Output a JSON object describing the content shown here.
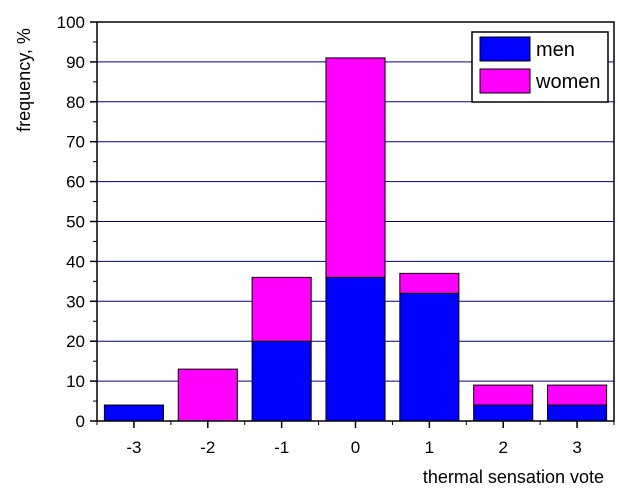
{
  "chart_data": {
    "type": "bar",
    "stacked": true,
    "categories": [
      "-3",
      "-2",
      "-1",
      "0",
      "1",
      "2",
      "3"
    ],
    "series": [
      {
        "name": "men",
        "color": "#0000ff",
        "values": [
          4,
          0,
          20,
          36,
          32,
          4,
          4
        ]
      },
      {
        "name": "women",
        "color": "#ff00ff",
        "values": [
          0,
          13,
          16,
          55,
          5,
          5,
          5
        ]
      }
    ],
    "xlabel": "thermal sensation vote",
    "ylabel": "frequency, %",
    "ylim": [
      0,
      100
    ],
    "yticks": [
      0,
      10,
      20,
      30,
      40,
      50,
      60,
      70,
      80,
      90,
      100
    ],
    "grid": true,
    "gridColor": "#00008b",
    "legend": "top-right"
  }
}
